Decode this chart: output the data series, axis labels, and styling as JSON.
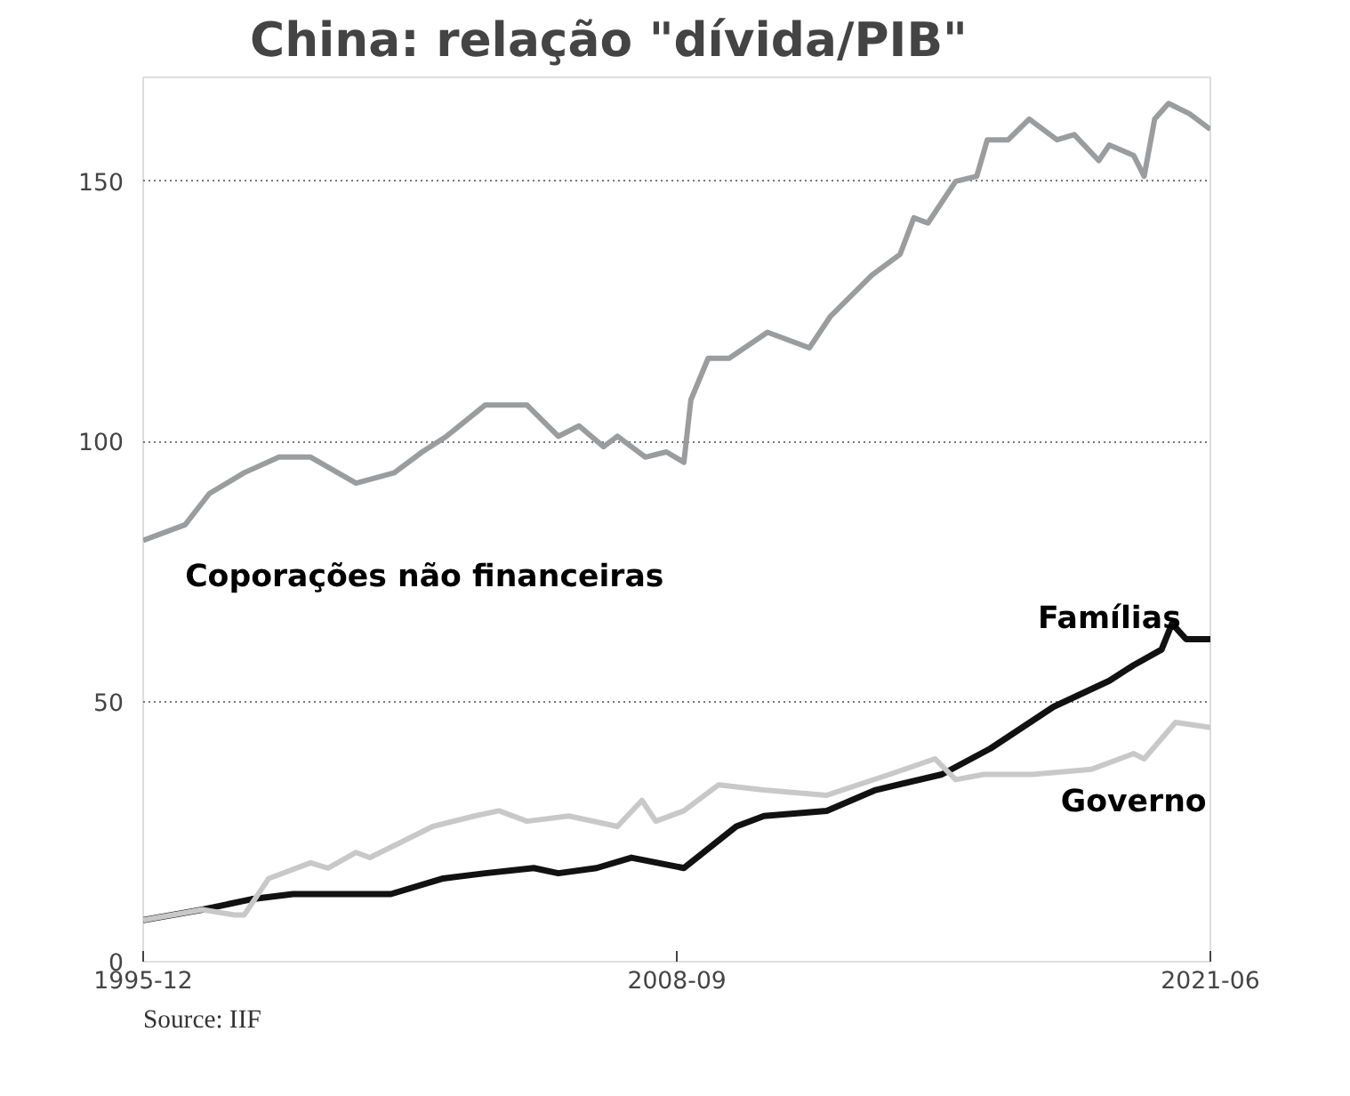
{
  "chart_data": {
    "type": "line",
    "title": "China: relação \"dívida/PIB\"",
    "xlim": [
      "1995-12",
      "2021-06"
    ],
    "ylim": [
      0,
      170
    ],
    "xticks": [
      "1995-12",
      "2008-09",
      "2021-06"
    ],
    "yticks": [
      0,
      50,
      100,
      150
    ],
    "grid": "y",
    "marker": "none",
    "line_style": "solid",
    "series": [
      {
        "name": "Coporações não financeiras",
        "color": "#9a9c9e",
        "x": [
          "1995-12",
          "1996-12",
          "1997-07",
          "1998-05",
          "1999-03",
          "1999-12",
          "2001-01",
          "2001-12",
          "2002-08",
          "2003-03",
          "2004-02",
          "2005-02",
          "2005-11",
          "2006-05",
          "2006-12",
          "2007-04",
          "2007-12",
          "2008-06",
          "2008-11",
          "2009-01",
          "2009-06",
          "2009-12",
          "2010-11",
          "2011-11",
          "2012-05",
          "2013-05",
          "2014-01",
          "2014-05",
          "2014-09",
          "2015-05",
          "2015-11",
          "2016-02",
          "2016-08",
          "2017-02",
          "2017-10",
          "2018-03",
          "2018-10",
          "2019-01",
          "2019-08",
          "2019-11",
          "2020-02",
          "2020-06",
          "2020-12",
          "2021-06"
        ],
        "values": [
          81,
          84,
          90,
          94,
          97,
          97,
          92,
          94,
          98,
          101,
          107,
          107,
          101,
          103,
          99,
          101,
          97,
          98,
          96,
          108,
          116,
          116,
          121,
          118,
          124,
          132,
          136,
          143,
          142,
          150,
          151,
          158,
          158,
          162,
          158,
          159,
          154,
          157,
          155,
          151,
          162,
          165,
          163,
          160
        ]
      },
      {
        "name": "Famílias",
        "color": "#111111",
        "x": [
          "1995-12",
          "1997-05",
          "1998-07",
          "1999-07",
          "2000-11",
          "2001-11",
          "2003-02",
          "2004-02",
          "2005-04",
          "2005-11",
          "2006-10",
          "2007-08",
          "2008-11",
          "2010-02",
          "2010-10",
          "2012-04",
          "2013-06",
          "2015-01",
          "2016-03",
          "2017-09",
          "2019-01",
          "2019-08",
          "2020-04",
          "2020-07",
          "2020-11",
          "2021-06"
        ],
        "values": [
          8,
          10,
          12,
          13,
          13,
          13,
          16,
          17,
          18,
          17,
          18,
          20,
          18,
          26,
          28,
          29,
          33,
          36,
          41,
          49,
          54,
          57,
          60,
          65,
          62,
          62
        ]
      },
      {
        "name": "Governo",
        "color": "#c8c8c8",
        "x": [
          "1995-12",
          "1997-05",
          "1998-02",
          "1998-05",
          "1998-12",
          "1999-12",
          "2000-05",
          "2001-01",
          "2001-05",
          "2002-02",
          "2002-11",
          "2003-11",
          "2004-06",
          "2005-02",
          "2006-02",
          "2007-04",
          "2007-11",
          "2008-03",
          "2008-11",
          "2009-09",
          "2010-10",
          "2012-04",
          "2013-10",
          "2014-11",
          "2015-05",
          "2016-01",
          "2017-03",
          "2018-08",
          "2019-08",
          "2019-11",
          "2020-08",
          "2021-06"
        ],
        "values": [
          8,
          10,
          9,
          9,
          16,
          19,
          18,
          21,
          20,
          23,
          26,
          28,
          29,
          27,
          28,
          26,
          31,
          27,
          29,
          34,
          33,
          32,
          36,
          39,
          35,
          36,
          36,
          37,
          40,
          39,
          46,
          45
        ]
      }
    ],
    "annotations": [
      "Source: IIF"
    ]
  }
}
